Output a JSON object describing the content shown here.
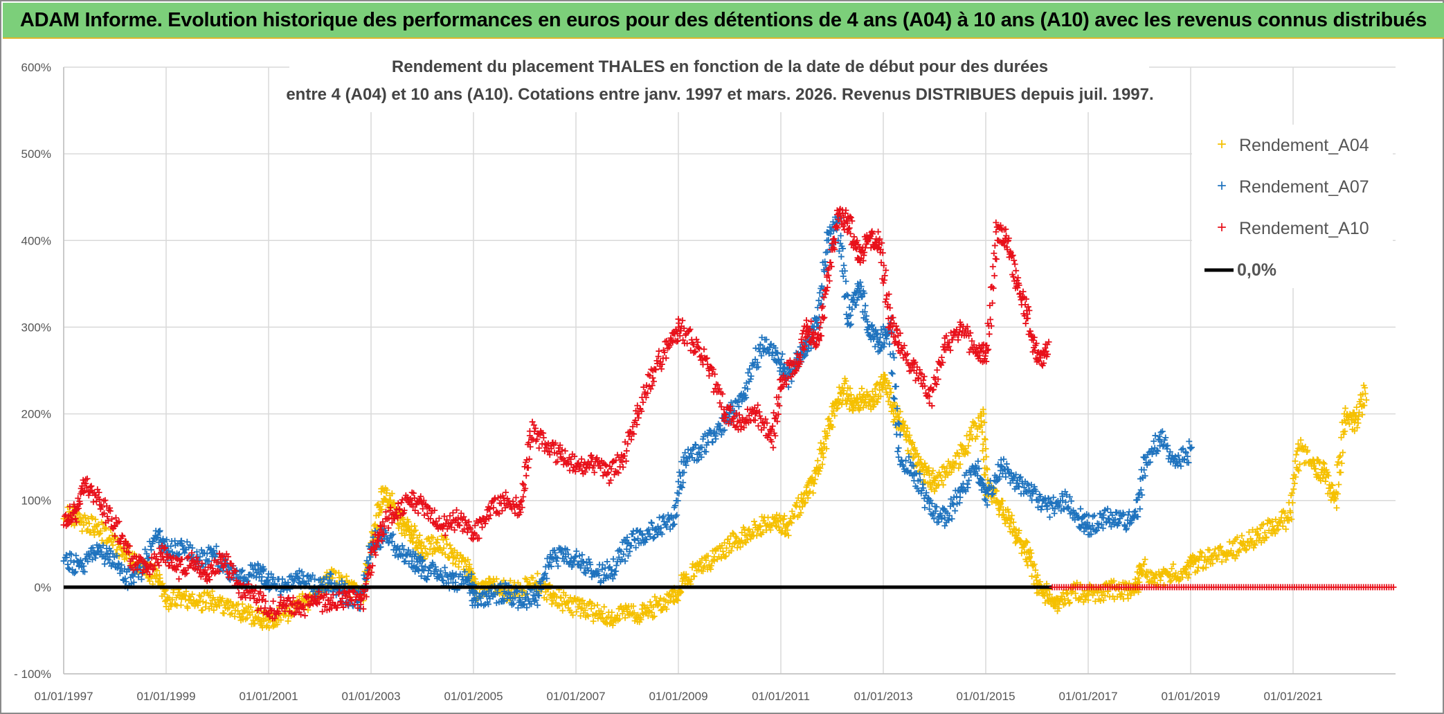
{
  "banner": {
    "title": "ADAM Informe. Evolution historique des performances en euros pour des détentions de 4 ans (A04) à 10 ans (A10) avec les revenus connus distribués"
  },
  "colors": {
    "A04": "#f5c000",
    "A07": "#1f73be",
    "A10": "#e8101a",
    "zero": "#000000",
    "banner": "#7ccf7a"
  },
  "chart_data": {
    "type": "scatter",
    "title_line1": "Rendement du placement THALES en fonction de la date de début pour des durées",
    "title_line2": "entre 4 (A04) et 10 ans (A10). Cotations entre janv. 1997 et mars. 2026. Revenus DISTRIBUES depuis juil. 1997.",
    "xlabel": "",
    "ylabel": "",
    "xlim": [
      1997.0,
      2023.0
    ],
    "ylim": [
      -100,
      600
    ],
    "y_ticks": [
      {
        "value": -100,
        "label": "- 100%"
      },
      {
        "value": 0,
        "label": "0%"
      },
      {
        "value": 100,
        "label": "100%"
      },
      {
        "value": 200,
        "label": "200%"
      },
      {
        "value": 300,
        "label": "300%"
      },
      {
        "value": 400,
        "label": "400%"
      },
      {
        "value": 500,
        "label": "500%"
      },
      {
        "value": 600,
        "label": "600%"
      }
    ],
    "x_ticks": [
      {
        "value": 1997,
        "label": "01/01/1997"
      },
      {
        "value": 1999,
        "label": "01/01/1999"
      },
      {
        "value": 2001,
        "label": "01/01/2001"
      },
      {
        "value": 2003,
        "label": "01/01/2003"
      },
      {
        "value": 2005,
        "label": "01/01/2005"
      },
      {
        "value": 2007,
        "label": "01/01/2007"
      },
      {
        "value": 2009,
        "label": "01/01/2009"
      },
      {
        "value": 2011,
        "label": "01/01/2011"
      },
      {
        "value": 2013,
        "label": "01/01/2013"
      },
      {
        "value": 2015,
        "label": "01/01/2015"
      },
      {
        "value": 2017,
        "label": "01/01/2017"
      },
      {
        "value": 2019,
        "label": "01/01/2019"
      },
      {
        "value": 2021,
        "label": "01/01/2021"
      }
    ],
    "grid": true,
    "legend_position": "top-right",
    "series": [
      {
        "name": "Rendement_A04",
        "key": "A04",
        "marker": "plus",
        "x": [
          1997.0,
          1997.3,
          1997.6,
          1997.9,
          1998.2,
          1998.5,
          1998.8,
          1999.0,
          1999.3,
          1999.6,
          1999.9,
          2000.2,
          2000.5,
          2000.8,
          2001.0,
          2001.3,
          2001.6,
          2001.9,
          2002.2,
          2002.5,
          2002.8,
          2003.0,
          2003.2,
          2003.4,
          2003.6,
          2003.8,
          2004.0,
          2004.3,
          2004.6,
          2004.9,
          2005.0,
          2005.3,
          2005.6,
          2005.9,
          2006.2,
          2006.5,
          2006.8,
          2007.1,
          2007.4,
          2007.7,
          2008.0,
          2008.3,
          2008.6,
          2008.9,
          2009.1,
          2009.4,
          2009.7,
          2010.0,
          2010.3,
          2010.6,
          2010.9,
          2011.1,
          2011.4,
          2011.6,
          2011.8,
          2012.0,
          2012.2,
          2012.4,
          2012.6,
          2012.8,
          2013.0,
          2013.2,
          2013.4,
          2013.6,
          2013.8,
          2014.0,
          2014.3,
          2014.6,
          2014.9,
          2015.0,
          2015.2,
          2015.4,
          2015.6,
          2015.8,
          2016.0,
          2016.2,
          2016.4,
          2016.7,
          2017.0,
          2017.3,
          2017.6,
          2017.9,
          2018.0,
          2018.3,
          2018.6,
          2018.9,
          2019.1,
          2019.4,
          2019.7,
          2020.0,
          2020.3,
          2020.6,
          2020.9,
          2021.1,
          2021.4,
          2021.6,
          2021.8,
          2022.0,
          2022.2,
          2022.4
        ],
        "y": [
          90,
          75,
          70,
          55,
          40,
          25,
          10,
          -15,
          -10,
          -18,
          -15,
          -25,
          -30,
          -35,
          -38,
          -30,
          -20,
          -10,
          10,
          5,
          -15,
          50,
          110,
          95,
          70,
          60,
          40,
          55,
          35,
          20,
          -5,
          5,
          -5,
          0,
          5,
          -10,
          -20,
          -25,
          -30,
          -35,
          -28,
          -30,
          -20,
          -10,
          10,
          20,
          35,
          50,
          60,
          70,
          75,
          70,
          100,
          120,
          160,
          200,
          230,
          210,
          220,
          215,
          240,
          200,
          180,
          150,
          130,
          120,
          140,
          160,
          200,
          110,
          100,
          80,
          60,
          40,
          0,
          -10,
          -20,
          -5,
          -8,
          -5,
          -2,
          -5,
          25,
          10,
          15,
          20,
          30,
          35,
          40,
          50,
          60,
          70,
          80,
          160,
          140,
          130,
          100,
          200,
          190,
          230
        ]
      },
      {
        "name": "Rendement_A07",
        "key": "A07",
        "marker": "plus",
        "x": [
          1997.0,
          1997.3,
          1997.6,
          1997.9,
          1998.2,
          1998.5,
          1998.8,
          1999.0,
          1999.3,
          1999.6,
          1999.9,
          2000.2,
          2000.5,
          2000.8,
          2001.0,
          2001.3,
          2001.6,
          2001.9,
          2002.2,
          2002.5,
          2002.8,
          2003.0,
          2003.2,
          2003.5,
          2003.8,
          2004.0,
          2004.3,
          2004.6,
          2004.9,
          2005.0,
          2005.3,
          2005.6,
          2005.9,
          2006.2,
          2006.5,
          2006.8,
          2007.1,
          2007.4,
          2007.7,
          2008.0,
          2008.3,
          2008.6,
          2008.9,
          2009.1,
          2009.4,
          2009.7,
          2010.0,
          2010.3,
          2010.6,
          2010.9,
          2011.1,
          2011.3,
          2011.5,
          2011.7,
          2011.9,
          2012.1,
          2012.3,
          2012.5,
          2012.7,
          2012.9,
          2013.1,
          2013.3,
          2013.6,
          2013.9,
          2014.2,
          2014.5,
          2014.8,
          2015.0,
          2015.3,
          2015.6,
          2015.9,
          2016.2,
          2016.5,
          2016.8,
          2017.0,
          2017.3,
          2017.6,
          2017.9,
          2018.1,
          2018.4,
          2018.7,
          2019.0
        ],
        "y": [
          30,
          25,
          40,
          35,
          10,
          20,
          65,
          40,
          50,
          30,
          40,
          15,
          10,
          20,
          5,
          0,
          10,
          0,
          5,
          -10,
          -15,
          50,
          60,
          45,
          30,
          20,
          15,
          5,
          10,
          -15,
          -10,
          -5,
          -15,
          -10,
          35,
          35,
          30,
          15,
          20,
          50,
          60,
          70,
          80,
          150,
          160,
          180,
          200,
          230,
          280,
          270,
          240,
          260,
          280,
          310,
          400,
          420,
          310,
          350,
          300,
          280,
          300,
          150,
          130,
          90,
          80,
          110,
          140,
          100,
          140,
          120,
          110,
          90,
          100,
          80,
          70,
          80,
          75,
          80,
          150,
          170,
          140,
          160
        ]
      },
      {
        "name": "Rendement_A10",
        "key": "A10",
        "marker": "plus",
        "x": [
          1997.0,
          1997.2,
          1997.4,
          1997.7,
          1998.0,
          1998.3,
          1998.6,
          1998.9,
          1999.2,
          1999.5,
          1999.8,
          2000.1,
          2000.4,
          2000.7,
          2001.0,
          2001.3,
          2001.6,
          2001.9,
          2002.2,
          2002.5,
          2002.8,
          2003.0,
          2003.2,
          2003.5,
          2003.8,
          2004.1,
          2004.4,
          2004.7,
          2005.0,
          2005.3,
          2005.6,
          2005.9,
          2006.1,
          2006.4,
          2006.7,
          2007.0,
          2007.3,
          2007.6,
          2007.9,
          2008.2,
          2008.5,
          2008.8,
          2009.0,
          2009.3,
          2009.6,
          2009.9,
          2010.2,
          2010.5,
          2010.8,
          2011.0,
          2011.3,
          2011.5,
          2011.7,
          2011.9,
          2012.1,
          2012.3,
          2012.5,
          2012.7,
          2012.9,
          2013.1,
          2013.3,
          2013.6,
          2013.9,
          2014.2,
          2014.5,
          2014.8,
          2015.0,
          2015.2,
          2015.4,
          2015.6,
          2015.8,
          2016.0,
          2016.2
        ],
        "y": [
          80,
          85,
          120,
          95,
          70,
          30,
          20,
          40,
          20,
          30,
          15,
          35,
          0,
          -10,
          -30,
          -20,
          -25,
          -15,
          -20,
          -10,
          -20,
          40,
          70,
          90,
          100,
          85,
          70,
          80,
          60,
          90,
          100,
          90,
          180,
          165,
          150,
          140,
          145,
          130,
          150,
          200,
          250,
          280,
          300,
          280,
          250,
          200,
          190,
          200,
          170,
          240,
          260,
          300,
          280,
          360,
          430,
          420,
          380,
          400,
          400,
          310,
          280,
          250,
          220,
          280,
          300,
          270,
          270,
          410,
          400,
          350,
          310,
          260,
          280
        ]
      },
      {
        "name": "0,0%",
        "key": "zero",
        "marker": "line",
        "x": [
          1997.0,
          2016.3
        ],
        "y": [
          0,
          0
        ]
      }
    ],
    "a10_zero_band": {
      "x_start": 2016.3,
      "x_end": 2023.0,
      "y": 0
    }
  }
}
